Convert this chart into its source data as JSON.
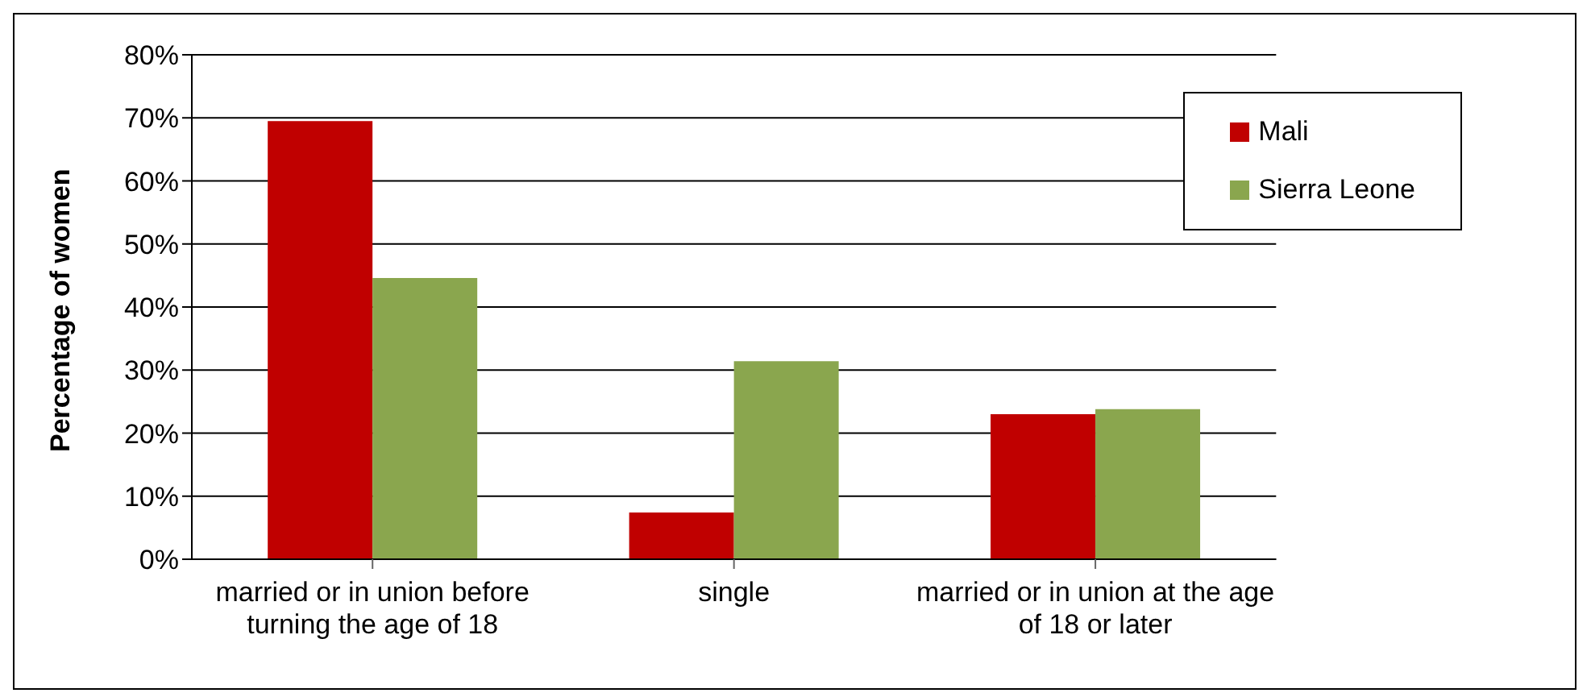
{
  "chart_data": {
    "type": "bar",
    "ylabel": "Percentage of women",
    "categories": [
      "married or in union before turning the age of 18",
      "single",
      "married or in union at the age of 18 or later"
    ],
    "series": [
      {
        "name": "Mali",
        "color": "#c00000",
        "values": [
          69.5,
          7.4,
          23.0
        ]
      },
      {
        "name": "Sierra Leone",
        "color": "#8aa64e",
        "values": [
          44.6,
          31.4,
          23.8
        ]
      }
    ],
    "ylim": [
      0,
      80
    ],
    "yticks": [
      {
        "value": 0,
        "label": "0%"
      },
      {
        "value": 10,
        "label": "10%"
      },
      {
        "value": 20,
        "label": "20%"
      },
      {
        "value": 30,
        "label": "30%"
      },
      {
        "value": 40,
        "label": "40%"
      },
      {
        "value": 50,
        "label": "50%"
      },
      {
        "value": 60,
        "label": "60%"
      },
      {
        "value": 70,
        "label": "70%"
      },
      {
        "value": 80,
        "label": "80%"
      }
    ],
    "grid": "y",
    "legend": "top right"
  }
}
